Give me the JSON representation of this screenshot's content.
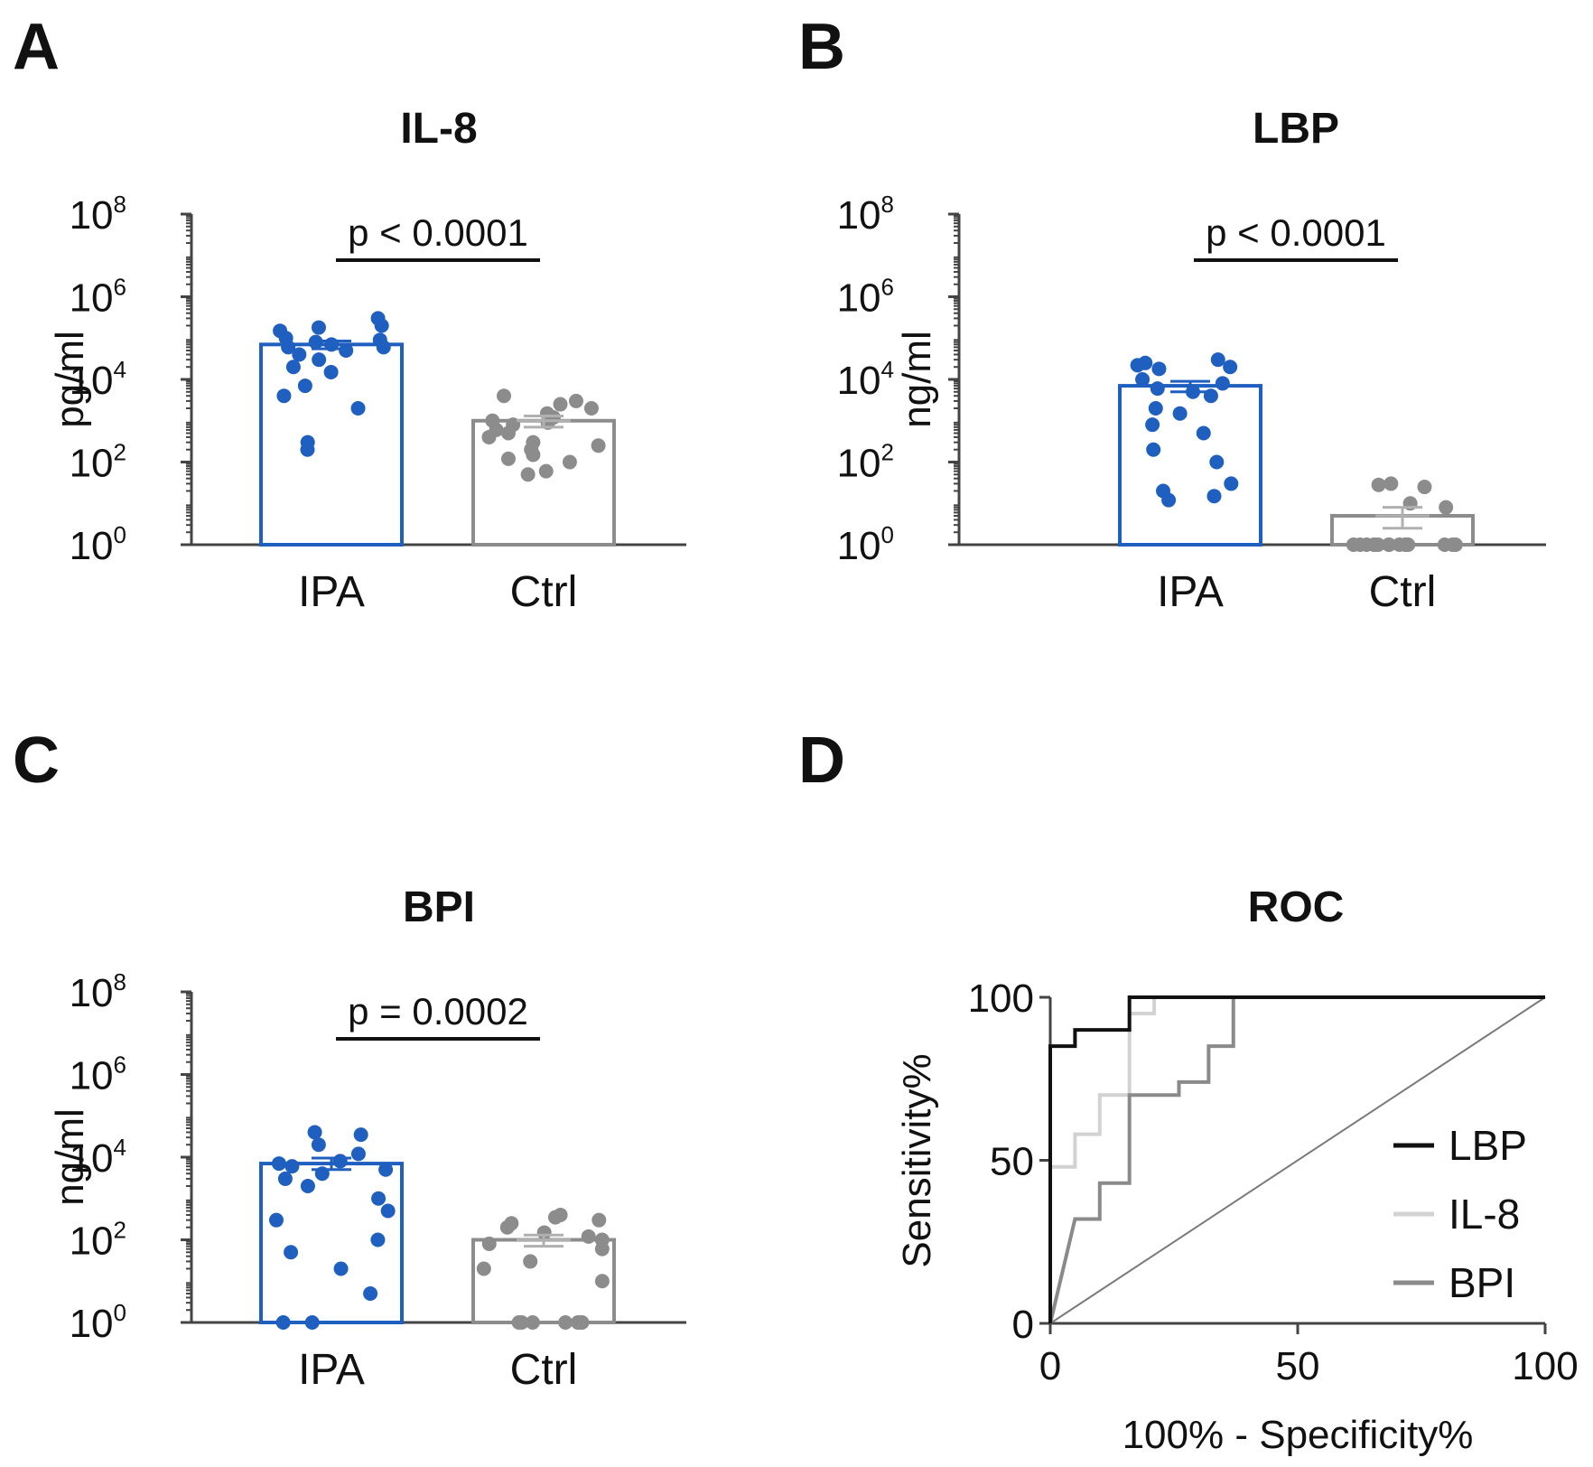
{
  "panel_letters": [
    "A",
    "B",
    "C",
    "D"
  ],
  "chart_data": [
    {
      "panel": "A",
      "type": "bar",
      "title": "IL-8",
      "ylabel": "pg/ml",
      "yscale": "log",
      "ylim": [
        1,
        100000000
      ],
      "yticks": [
        {
          "base": "10",
          "exp": "0"
        },
        {
          "base": "10",
          "exp": "2"
        },
        {
          "base": "10",
          "exp": "4"
        },
        {
          "base": "10",
          "exp": "6"
        },
        {
          "base": "10",
          "exp": "8"
        }
      ],
      "categories": [
        "IPA",
        "Ctrl"
      ],
      "bars": [
        {
          "category": "IPA",
          "mean": 70000,
          "sem_low": 55000,
          "sem_high": 85000,
          "color": "#1f5fbf",
          "points": [
            300000,
            200000,
            150000,
            180000,
            90000,
            60000,
            80000,
            70000,
            50000,
            40000,
            100000,
            60000,
            30000,
            20000,
            15000,
            7000,
            4000,
            2000,
            300,
            200
          ]
        },
        {
          "category": "Ctrl",
          "mean": 1000,
          "sem_low": 700,
          "sem_high": 1300,
          "color": "#8c8c8c",
          "points": [
            4000,
            3000,
            2500,
            2000,
            1500,
            1200,
            1000,
            900,
            800,
            600,
            500,
            400,
            300,
            250,
            200,
            150,
            120,
            100,
            60,
            50
          ]
        }
      ],
      "annotation": {
        "text": "p < 0.0001"
      }
    },
    {
      "panel": "B",
      "type": "bar",
      "title": "LBP",
      "ylabel": "ng/ml",
      "yscale": "log",
      "ylim": [
        1,
        100000000
      ],
      "yticks": [
        {
          "base": "10",
          "exp": "0"
        },
        {
          "base": "10",
          "exp": "2"
        },
        {
          "base": "10",
          "exp": "4"
        },
        {
          "base": "10",
          "exp": "6"
        },
        {
          "base": "10",
          "exp": "8"
        }
      ],
      "categories": [
        "IPA",
        "Ctrl"
      ],
      "bars": [
        {
          "category": "IPA",
          "mean": 7000,
          "sem_low": 5000,
          "sem_high": 9000,
          "color": "#1f5fbf",
          "points": [
            25000,
            20000,
            30000,
            22000,
            18000,
            10000,
            8000,
            6000,
            5000,
            4000,
            2000,
            1500,
            800,
            500,
            200,
            100,
            30,
            20,
            15,
            12
          ]
        },
        {
          "category": "Ctrl",
          "mean": 5,
          "sem_low": 2.5,
          "sem_high": 8,
          "color": "#8c8c8c",
          "points": [
            30,
            25,
            28,
            10,
            8,
            1,
            1,
            1,
            1,
            1,
            1,
            1,
            1,
            1,
            1,
            1,
            1,
            1,
            1,
            1
          ]
        }
      ],
      "annotation": {
        "text": "p < 0.0001"
      }
    },
    {
      "panel": "C",
      "type": "bar",
      "title": "BPI",
      "ylabel": "ng/ml",
      "yscale": "log",
      "ylim": [
        1,
        100000000
      ],
      "yticks": [
        {
          "base": "10",
          "exp": "0"
        },
        {
          "base": "10",
          "exp": "2"
        },
        {
          "base": "10",
          "exp": "4"
        },
        {
          "base": "10",
          "exp": "6"
        },
        {
          "base": "10",
          "exp": "8"
        }
      ],
      "categories": [
        "IPA",
        "Ctrl"
      ],
      "bars": [
        {
          "category": "IPA",
          "mean": 7000,
          "sem_low": 5000,
          "sem_high": 9500,
          "color": "#1f5fbf",
          "points": [
            40000,
            35000,
            20000,
            12000,
            8000,
            7000,
            6000,
            5000,
            4000,
            3000,
            2000,
            1000,
            500,
            300,
            100,
            50,
            20,
            5,
            1,
            1
          ]
        },
        {
          "category": "Ctrl",
          "mean": 100,
          "sem_low": 70,
          "sem_high": 130,
          "color": "#8c8c8c",
          "points": [
            400,
            350,
            300,
            250,
            200,
            150,
            120,
            100,
            80,
            60,
            30,
            20,
            10,
            1,
            1,
            1,
            1,
            1,
            1,
            1
          ]
        }
      ],
      "annotation": {
        "text": "p = 0.0002"
      }
    },
    {
      "panel": "D",
      "type": "line",
      "title": "ROC",
      "xlabel": "100% - Specificity%",
      "ylabel": "Sensitivity%",
      "xlim": [
        0,
        100
      ],
      "ylim": [
        0,
        100
      ],
      "xticks": [
        "0",
        "50",
        "100"
      ],
      "yticks": [
        "0",
        "50",
        "100"
      ],
      "legend_position": "bottom-right",
      "series": [
        {
          "name": "LBP",
          "color": "#111111",
          "points": [
            [
              0,
              0
            ],
            [
              0,
              85
            ],
            [
              5,
              85
            ],
            [
              5,
              90
            ],
            [
              16,
              90
            ],
            [
              16,
              100
            ],
            [
              100,
              100
            ]
          ]
        },
        {
          "name": "IL-8",
          "color": "#d2d2d2",
          "points": [
            [
              0,
              0
            ],
            [
              0,
              48
            ],
            [
              5,
              48
            ],
            [
              5,
              58
            ],
            [
              10,
              58
            ],
            [
              10,
              70
            ],
            [
              16,
              70
            ],
            [
              16,
              95
            ],
            [
              21,
              95
            ],
            [
              21,
              100
            ],
            [
              100,
              100
            ]
          ]
        },
        {
          "name": "BPI",
          "color": "#8a8a8a",
          "points": [
            [
              0,
              0
            ],
            [
              5,
              32
            ],
            [
              10,
              32
            ],
            [
              10,
              43
            ],
            [
              16,
              43
            ],
            [
              16,
              70
            ],
            [
              26,
              70
            ],
            [
              26,
              74
            ],
            [
              32,
              74
            ],
            [
              32,
              85
            ],
            [
              37,
              85
            ],
            [
              37,
              100
            ],
            [
              100,
              100
            ]
          ]
        }
      ],
      "reference_line": [
        [
          0,
          0
        ],
        [
          100,
          100
        ]
      ]
    }
  ]
}
